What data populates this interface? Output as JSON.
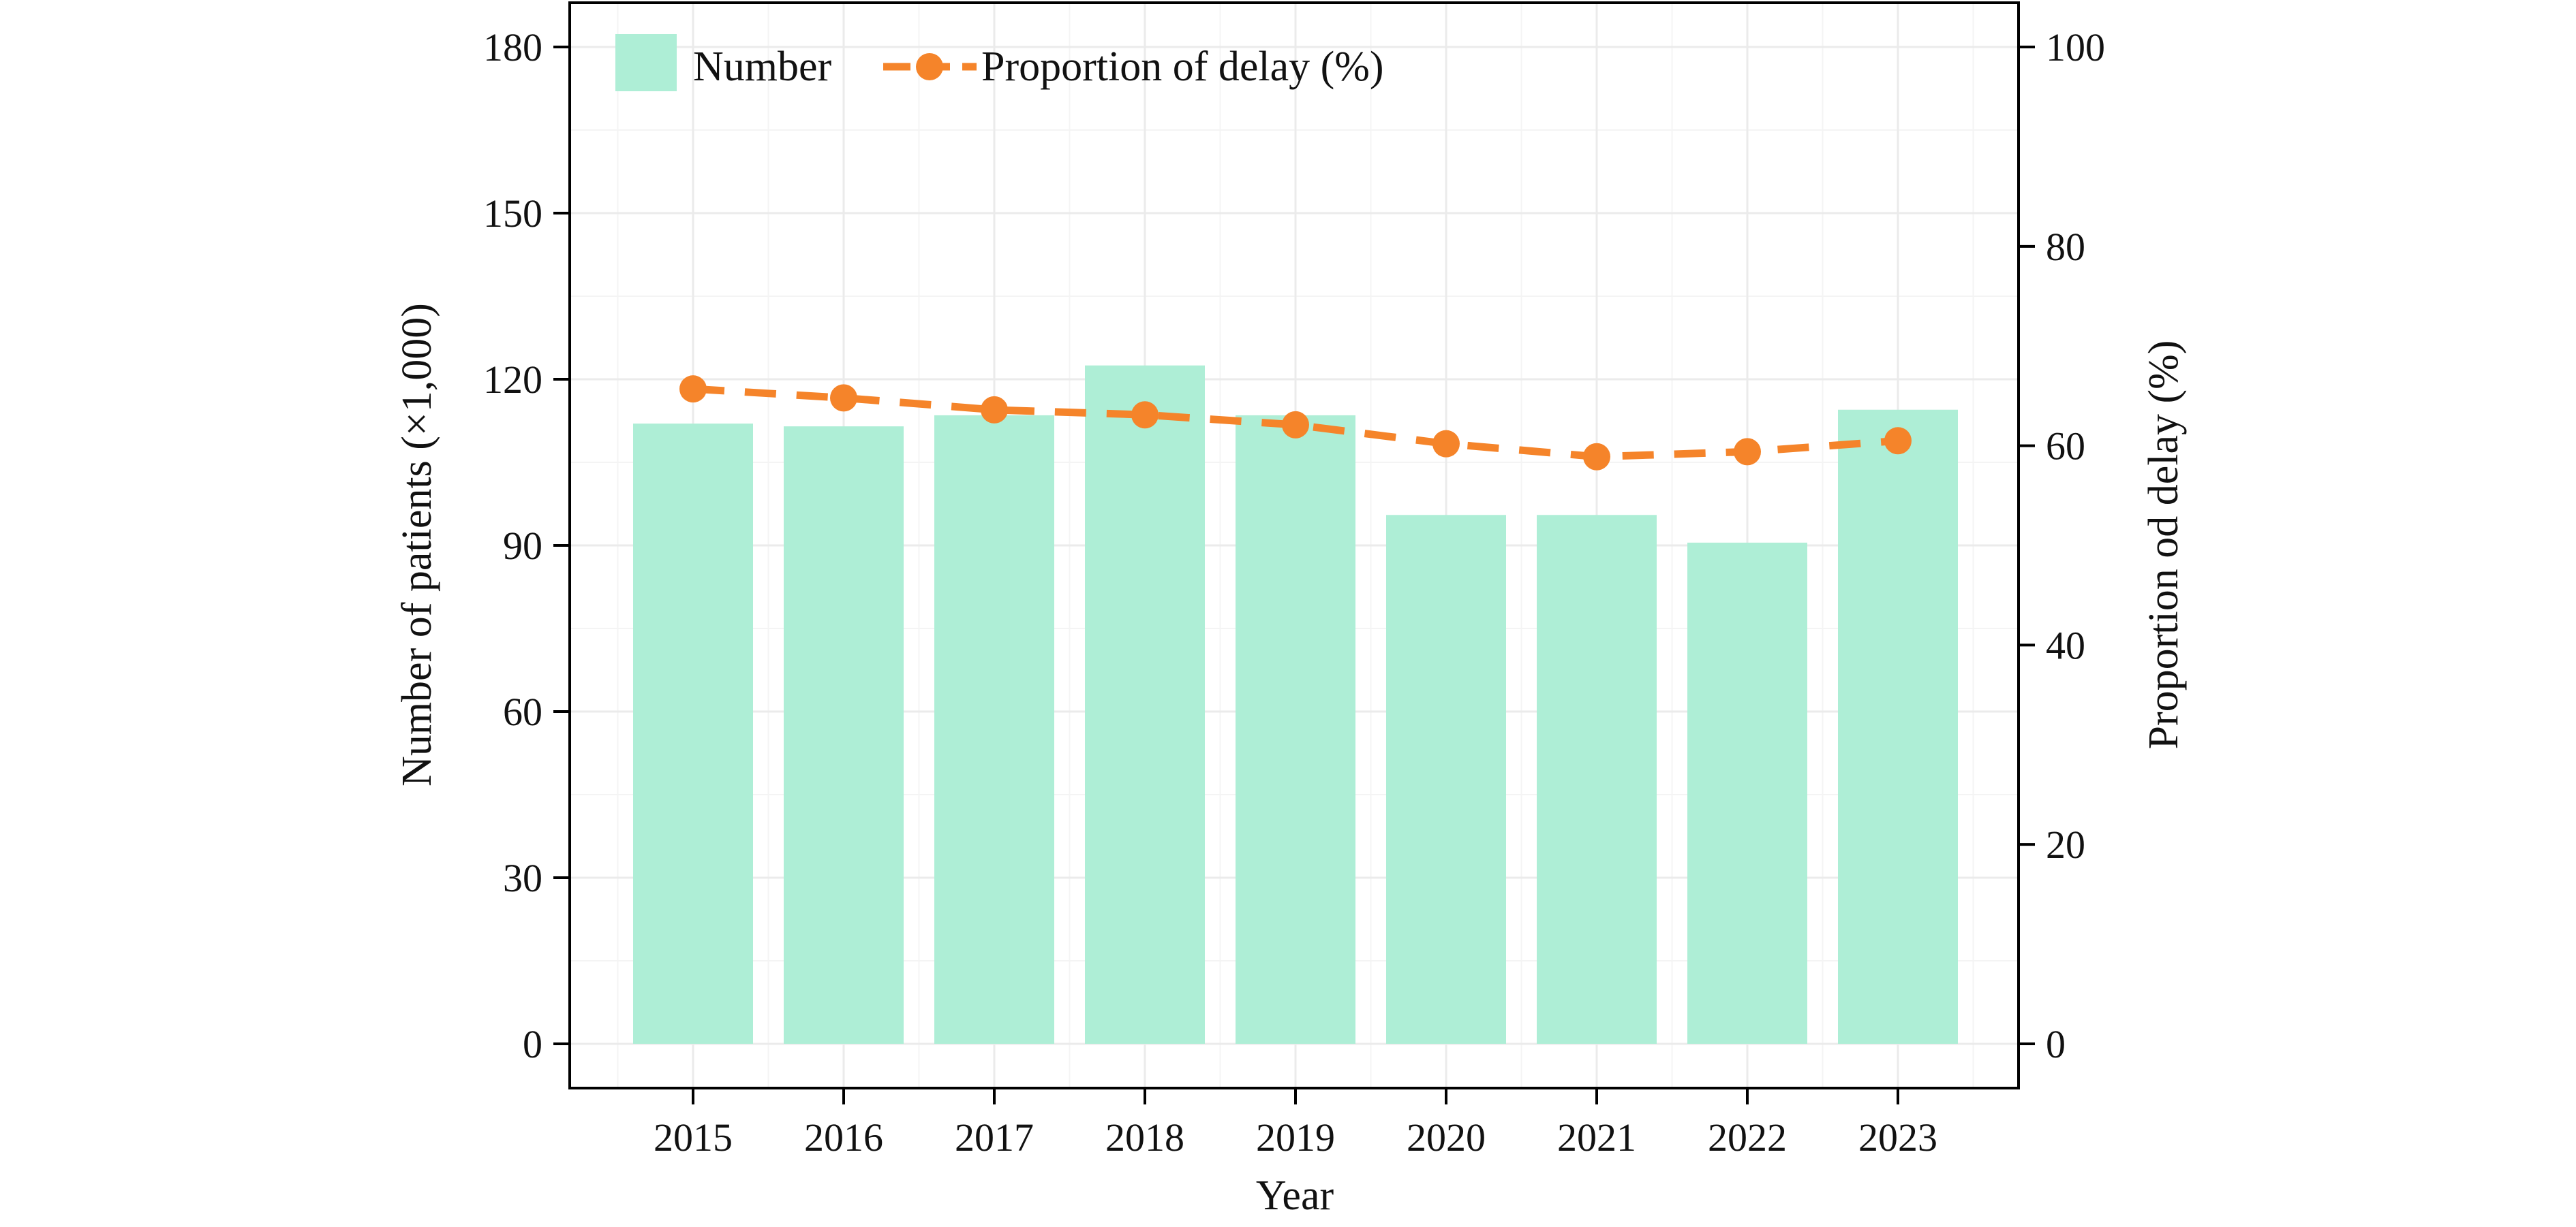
{
  "chart_data": {
    "type": "bar",
    "categories": [
      "2015",
      "2016",
      "2017",
      "2018",
      "2019",
      "2020",
      "2021",
      "2022",
      "2023"
    ],
    "xlabel": "Year",
    "series": [
      {
        "name": "Number",
        "axis": "left",
        "type": "bar",
        "color": "#aeeed6",
        "values": [
          112,
          111.5,
          113.5,
          122.5,
          113.5,
          95.5,
          95.5,
          90.5,
          114.5
        ]
      },
      {
        "name": "Proportion of delay (%)",
        "axis": "right",
        "type": "line",
        "line_style": "dashed",
        "marker": "circle",
        "color": "#f5842a",
        "values": [
          65.7,
          64.8,
          63.6,
          63.1,
          62.1,
          60.2,
          58.9,
          59.4,
          60.5
        ]
      }
    ],
    "y_left": {
      "label": "Number of patients (×1,000)",
      "ylim": [
        -8,
        188
      ],
      "ticks": [
        "0",
        "30",
        "60",
        "90",
        "120",
        "150",
        "180"
      ]
    },
    "y_right": {
      "label": "Proportion od delay (%)",
      "ylim": [
        -4.444,
        104.444
      ],
      "ticks": [
        "0",
        "20",
        "40",
        "60",
        "80",
        "100"
      ]
    },
    "grid": true,
    "legend_position": "top-left"
  }
}
